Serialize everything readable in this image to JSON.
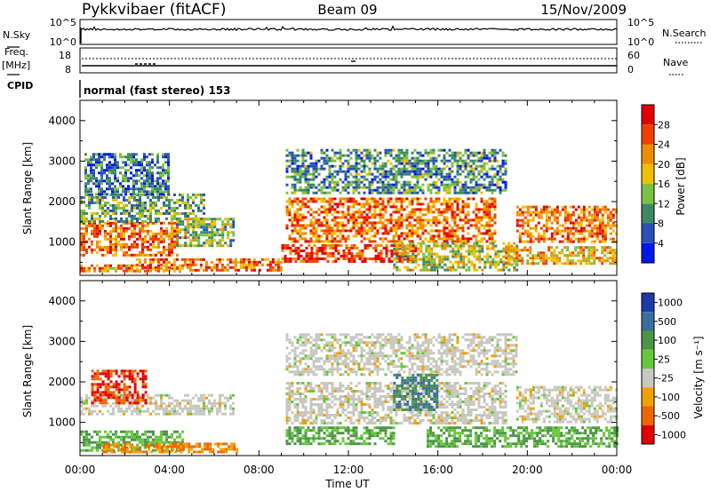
{
  "header": {
    "station": "Pykkvibaer (fitACF)",
    "beam": "Beam 09",
    "date": "15/Nov/2009"
  },
  "strip_labels": {
    "nsky": "N.Sky",
    "nsky_ticks": [
      "10^5",
      "10^0"
    ],
    "nsearch": "N.Search",
    "nsearch_ticks": [
      "10^5",
      "10^0"
    ],
    "freq": "Freq.",
    "freq_unit": "[MHz]",
    "freq_ticks": [
      "18",
      "8"
    ],
    "nave": "Nave",
    "nave_ticks": [
      "60",
      "0"
    ],
    "cpid": "CPID",
    "cpid_value": "normal (fast stereo) 153"
  },
  "chart_data": [
    {
      "type": "heatmap",
      "title": "",
      "xlabel": "",
      "ylabel": "Slant Range [km]",
      "ylim": [
        180,
        4500
      ],
      "xlim": [
        "00:00",
        "00:00"
      ],
      "y_ticks": [
        1000,
        2000,
        3000,
        4000
      ],
      "x_ticks": [
        "00:00",
        "04:00",
        "08:00",
        "12:00",
        "16:00",
        "20:00",
        "00:00"
      ],
      "colorbar": {
        "label": "Power [dB]",
        "ticks": [
          "4",
          "8",
          "12",
          "16",
          "20",
          "24",
          "28"
        ],
        "colors": [
          "#0018e8",
          "#2a50b8",
          "#3c8a64",
          "#7cc040",
          "#f0c000",
          "#f08c00",
          "#f04000",
          "#e00000"
        ]
      },
      "regions": [
        {
          "t0": 0.0,
          "t1": 4.6,
          "r0": 300,
          "r1": 450,
          "power": 22
        },
        {
          "t0": 0.0,
          "t1": 4.3,
          "r0": 700,
          "r1": 1500,
          "power": 24
        },
        {
          "t0": 0.0,
          "t1": 5.5,
          "r0": 1500,
          "r1": 2200,
          "power": 12
        },
        {
          "t0": 0.2,
          "t1": 4.0,
          "r0": 2200,
          "r1": 3200,
          "power": 8
        },
        {
          "t0": 4.3,
          "t1": 6.9,
          "r0": 900,
          "r1": 1600,
          "power": 14
        },
        {
          "t0": 2.5,
          "t1": 9.0,
          "r0": 300,
          "r1": 600,
          "power": 24
        },
        {
          "t0": 9.0,
          "t1": 15.0,
          "r0": 500,
          "r1": 950,
          "power": 28
        },
        {
          "t0": 9.2,
          "t1": 18.5,
          "r0": 1000,
          "r1": 2100,
          "power": 24
        },
        {
          "t0": 9.2,
          "t1": 19.0,
          "r0": 2200,
          "r1": 3300,
          "power": 10
        },
        {
          "t0": 14.0,
          "t1": 19.5,
          "r0": 300,
          "r1": 1000,
          "power": 16
        },
        {
          "t0": 19.0,
          "t1": 24.0,
          "r0": 500,
          "r1": 900,
          "power": 20
        },
        {
          "t0": 19.5,
          "t1": 24.0,
          "r0": 1000,
          "r1": 1900,
          "power": 24
        }
      ]
    },
    {
      "type": "heatmap",
      "title": "",
      "xlabel": "Time UT",
      "ylabel": "Slant Range [km]",
      "ylim": [
        180,
        4500
      ],
      "xlim": [
        "00:00",
        "00:00"
      ],
      "y_ticks": [
        1000,
        2000,
        3000,
        4000
      ],
      "x_ticks": [
        "00:00",
        "04:00",
        "08:00",
        "12:00",
        "16:00",
        "20:00",
        "00:00"
      ],
      "colorbar": {
        "label": "Velocity [m s⁻¹]",
        "ticks": [
          "1000",
          "500",
          "100",
          "25",
          "-25",
          "-100",
          "-500",
          "-1000"
        ],
        "colors": [
          "#1a3ca8",
          "#3c6e9c",
          "#4c9448",
          "#64c83c",
          "#c8c8c0",
          "#f0a000",
          "#f06400",
          "#e00000"
        ]
      },
      "regions": [
        {
          "t0": 0.0,
          "t1": 4.6,
          "r0": 300,
          "r1": 800,
          "velocity": 100
        },
        {
          "t0": 0.0,
          "t1": 6.9,
          "r0": 1200,
          "r1": 1700,
          "velocity": 0
        },
        {
          "t0": 0.5,
          "t1": 3.0,
          "r0": 1500,
          "r1": 2300,
          "velocity": -500
        },
        {
          "t0": 1.0,
          "t1": 7.0,
          "r0": 250,
          "r1": 500,
          "velocity": -100
        },
        {
          "t0": 9.2,
          "t1": 14.0,
          "r0": 450,
          "r1": 900,
          "velocity": 100
        },
        {
          "t0": 9.2,
          "t1": 19.0,
          "r0": 1000,
          "r1": 2000,
          "velocity": 0
        },
        {
          "t0": 9.2,
          "t1": 19.5,
          "r0": 2200,
          "r1": 3200,
          "velocity": 0
        },
        {
          "t0": 14.0,
          "t1": 16.0,
          "r0": 1300,
          "r1": 2200,
          "velocity": 500
        },
        {
          "t0": 15.5,
          "t1": 24.0,
          "r0": 400,
          "r1": 900,
          "velocity": 100
        },
        {
          "t0": 19.5,
          "t1": 24.0,
          "r0": 1000,
          "r1": 1900,
          "velocity": 0
        }
      ]
    }
  ]
}
